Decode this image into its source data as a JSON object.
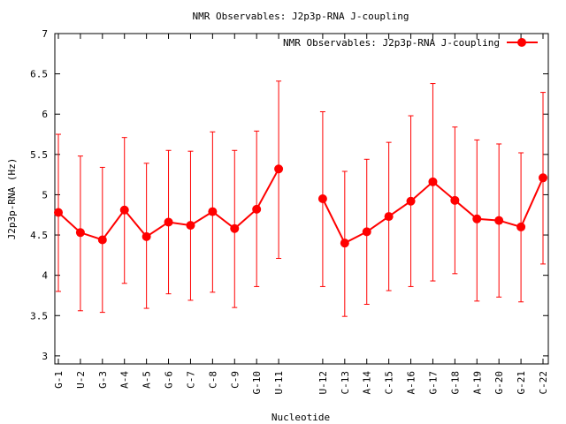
{
  "chart_data": {
    "type": "line",
    "title": "NMR Observables: J2p3p-RNA J-coupling",
    "xlabel": "Nucleotide",
    "ylabel": "J2p3p-RNA (Hz)",
    "ylim": [
      2.9,
      7.0
    ],
    "y_ticks": [
      "3",
      "3.5",
      "4",
      "4.5",
      "5",
      "5.5",
      "6",
      "6.5",
      "7"
    ],
    "y_tick_values": [
      3,
      3.5,
      4,
      4.5,
      5,
      5.5,
      6,
      6.5,
      7
    ],
    "xlim": [
      0,
      23
    ],
    "legend": {
      "label": "NMR Observables: J2p3p-RNA J-coupling",
      "placement": "top-right"
    },
    "grid": false,
    "color": "#ff0000",
    "series": [
      {
        "name": "NMR Observables: J2p3p-RNA J-coupling",
        "segments": [
          [
            {
              "x": 0,
              "label": "G-1",
              "y": 4.78,
              "err_low": 3.8,
              "err_high": 5.75
            },
            {
              "x": 1,
              "label": "U-2",
              "y": 4.53,
              "err_low": 3.56,
              "err_high": 5.48
            },
            {
              "x": 2,
              "label": "G-3",
              "y": 4.44,
              "err_low": 3.54,
              "err_high": 5.34
            },
            {
              "x": 3,
              "label": "A-4",
              "y": 4.81,
              "err_low": 3.9,
              "err_high": 5.71
            },
            {
              "x": 4,
              "label": "A-5",
              "y": 4.48,
              "err_low": 3.59,
              "err_high": 5.39
            },
            {
              "x": 5,
              "label": "G-6",
              "y": 4.66,
              "err_low": 3.77,
              "err_high": 5.55
            },
            {
              "x": 6,
              "label": "C-7",
              "y": 4.62,
              "err_low": 3.69,
              "err_high": 5.54
            },
            {
              "x": 7,
              "label": "C-8",
              "y": 4.79,
              "err_low": 3.79,
              "err_high": 5.78
            },
            {
              "x": 8,
              "label": "C-9",
              "y": 4.58,
              "err_low": 3.6,
              "err_high": 5.55
            },
            {
              "x": 9,
              "label": "G-10",
              "y": 4.82,
              "err_low": 3.86,
              "err_high": 5.79
            },
            {
              "x": 10,
              "label": "U-11",
              "y": 5.32,
              "err_low": 4.21,
              "err_high": 6.41
            }
          ],
          [
            {
              "x": 12,
              "label": "U-12",
              "y": 4.95,
              "err_low": 3.86,
              "err_high": 6.03
            },
            {
              "x": 13,
              "label": "C-13",
              "y": 4.4,
              "err_low": 3.49,
              "err_high": 5.29
            },
            {
              "x": 14,
              "label": "A-14",
              "y": 4.54,
              "err_low": 3.64,
              "err_high": 5.44
            },
            {
              "x": 15,
              "label": "C-15",
              "y": 4.73,
              "err_low": 3.81,
              "err_high": 5.65
            },
            {
              "x": 16,
              "label": "A-16",
              "y": 4.92,
              "err_low": 3.86,
              "err_high": 5.98
            },
            {
              "x": 17,
              "label": "G-17",
              "y": 5.16,
              "err_low": 3.93,
              "err_high": 6.38
            },
            {
              "x": 18,
              "label": "G-18",
              "y": 4.93,
              "err_low": 4.02,
              "err_high": 5.84
            },
            {
              "x": 19,
              "label": "A-19",
              "y": 4.7,
              "err_low": 3.68,
              "err_high": 5.68
            },
            {
              "x": 20,
              "label": "G-20",
              "y": 4.68,
              "err_low": 3.73,
              "err_high": 5.63
            },
            {
              "x": 21,
              "label": "G-21",
              "y": 4.6,
              "err_low": 3.67,
              "err_high": 5.52
            },
            {
              "x": 22,
              "label": "C-22",
              "y": 5.21,
              "err_low": 4.14,
              "err_high": 6.27
            }
          ]
        ]
      }
    ]
  }
}
